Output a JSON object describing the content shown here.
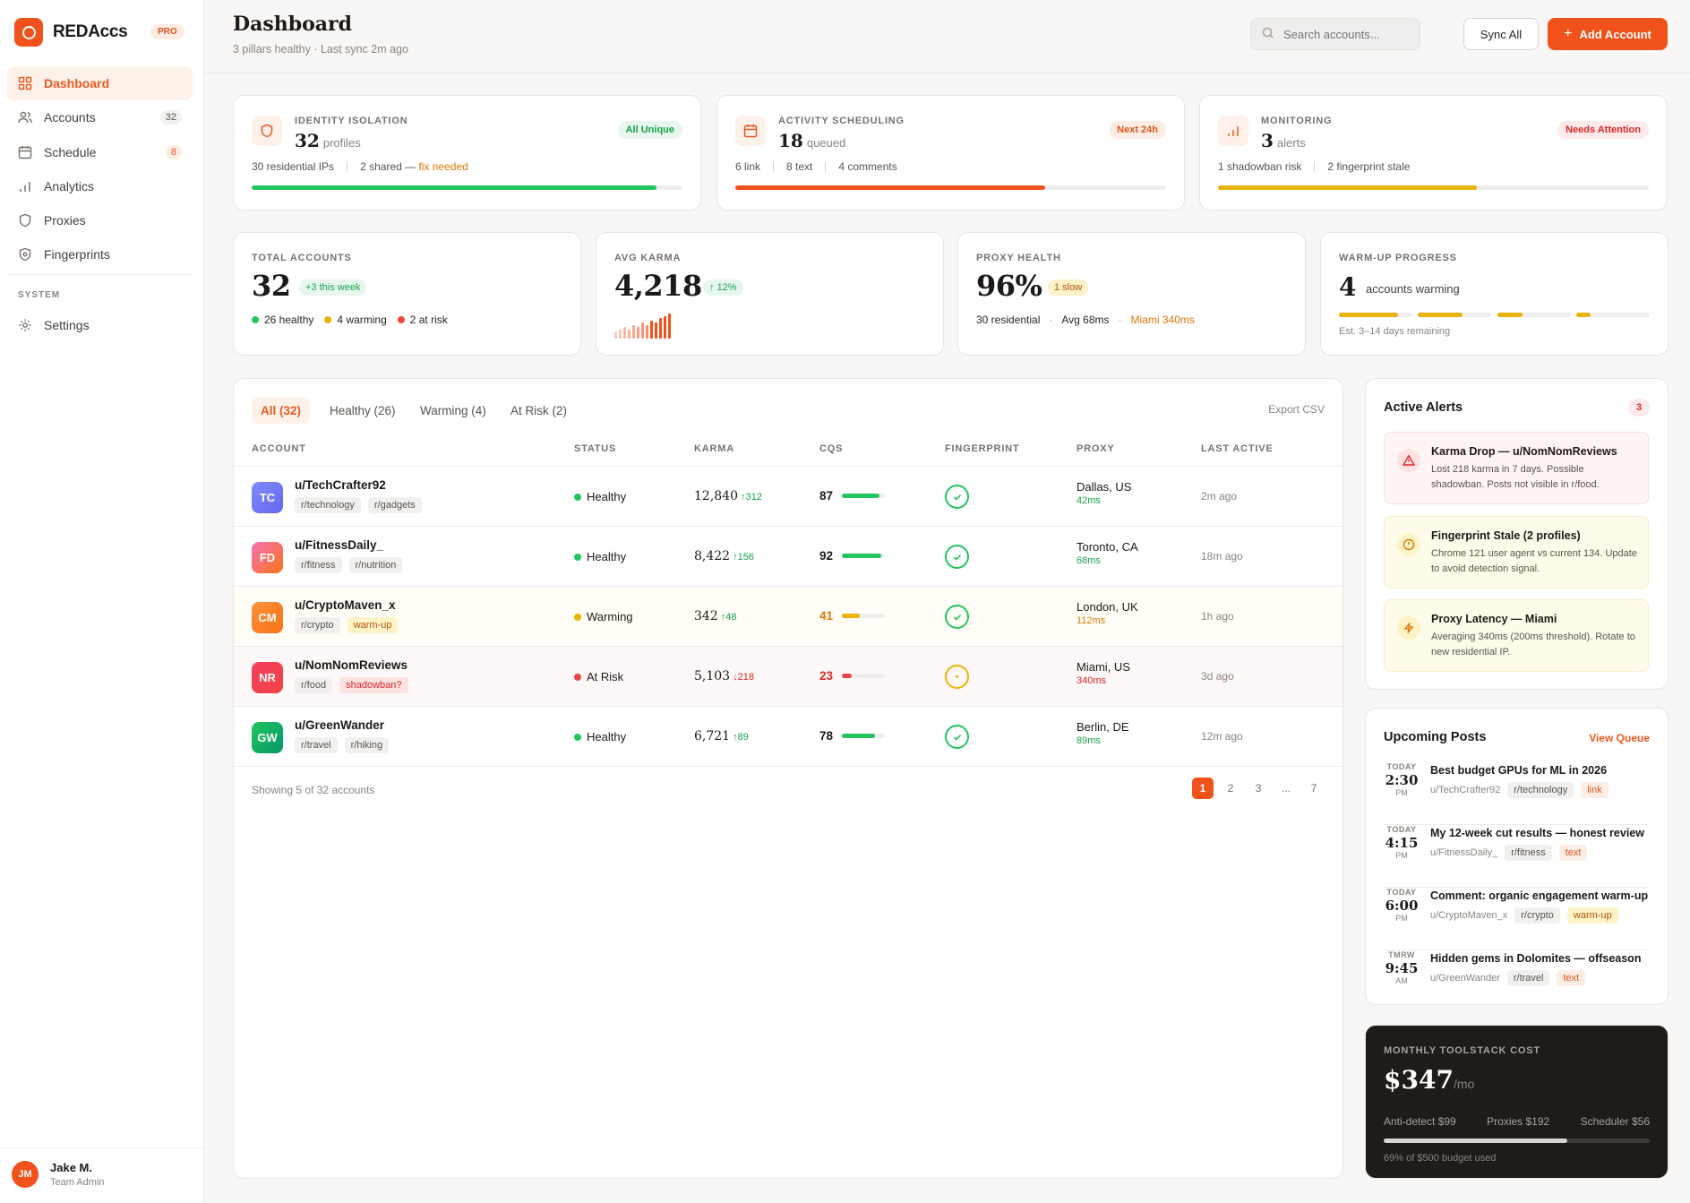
{
  "brand": {
    "name": "REDAccs",
    "badge": "PRO"
  },
  "sidebar": {
    "items": [
      {
        "label": "Dashboard",
        "icon": "grid-icon"
      },
      {
        "label": "Accounts",
        "icon": "users-icon",
        "count": "32"
      },
      {
        "label": "Schedule",
        "icon": "calendar-icon",
        "count": "8"
      },
      {
        "label": "Analytics",
        "icon": "bar-chart-icon"
      },
      {
        "label": "Proxies",
        "icon": "shield-icon"
      },
      {
        "label": "Fingerprints",
        "icon": "fingerprint-icon"
      }
    ],
    "system_label": "SYSTEM",
    "settings_label": "Settings",
    "user": {
      "initials": "JM",
      "name": "Jake M.",
      "role": "Team Admin"
    }
  },
  "header": {
    "title": "Dashboard",
    "subtitle": "3 pillars healthy · Last sync 2m ago",
    "search_placeholder": "Search accounts...",
    "sync_label": "Sync All",
    "add_label": "Add Account"
  },
  "pillars": [
    {
      "label": "IDENTITY ISOLATION",
      "value": "32",
      "unit": "profiles",
      "badge": "All Unique",
      "detail_a": "30 residential IPs",
      "detail_b": "2 shared —",
      "detail_c": "fix needed",
      "progress": 0.94
    },
    {
      "label": "ACTIVITY SCHEDULING",
      "value": "18",
      "unit": "queued",
      "badge": "Next 24h",
      "detail_a": "6 link",
      "detail_b": "8 text",
      "detail_c": "4 comments",
      "progress": 0.72
    },
    {
      "label": "MONITORING",
      "value": "3",
      "unit": "alerts",
      "badge": "Needs Attention",
      "detail_a": "1 shadowban risk",
      "detail_b": "2 fingerprint stale",
      "progress": 0.6
    }
  ],
  "stats": {
    "total": {
      "label": "TOTAL ACCOUNTS",
      "value": "32",
      "badge": "+3 this week",
      "healthy": "26 healthy",
      "warming": "4 warming",
      "risk": "2 at risk"
    },
    "karma": {
      "label": "AVG KARMA",
      "value": "4,218",
      "badge": "12%",
      "sparkline": [
        3,
        4,
        5,
        4,
        6,
        5,
        7,
        6,
        8,
        7,
        9,
        10,
        11
      ]
    },
    "proxy": {
      "label": "PROXY HEALTH",
      "value": "96%",
      "badge": "1 slow",
      "d1": "30 residential",
      "d2": "Avg 68ms",
      "d3": "Miami 340ms"
    },
    "warmup": {
      "label": "WARM-UP PROGRESS",
      "value": "4",
      "unit": "accounts warming",
      "progress": [
        0.8,
        0.6,
        0.35,
        0.2
      ],
      "eta": "Est. 3–14 days remaining"
    }
  },
  "table": {
    "tabs": [
      "All (32)",
      "Healthy (26)",
      "Warming (4)",
      "At Risk (2)"
    ],
    "export": "Export CSV",
    "columns": [
      "ACCOUNT",
      "STATUS",
      "KARMA",
      "CQS",
      "FINGERPRINT",
      "PROXY",
      "LAST ACTIVE"
    ],
    "rows": [
      {
        "initials": "TC",
        "name": "u/TechCrafter92",
        "tags": [
          "r/technology",
          "r/gadgets"
        ],
        "status": "Healthy",
        "karma": "12,840",
        "delta": "↑312",
        "cqs": "87",
        "proxy": "Dallas, US",
        "latency": "42ms",
        "last": "2m ago"
      },
      {
        "initials": "FD",
        "name": "u/FitnessDaily_",
        "tags": [
          "r/fitness",
          "r/nutrition"
        ],
        "status": "Healthy",
        "karma": "8,422",
        "delta": "↑156",
        "cqs": "92",
        "proxy": "Toronto, CA",
        "latency": "68ms",
        "last": "18m ago"
      },
      {
        "initials": "CM",
        "name": "u/CryptoMaven_x",
        "tags": [
          "r/crypto",
          "warm-up"
        ],
        "status": "Warming",
        "karma": "342",
        "delta": "↑48",
        "cqs": "41",
        "proxy": "London, UK",
        "latency": "112ms",
        "last": "1h ago"
      },
      {
        "initials": "NR",
        "name": "u/NomNomReviews",
        "tags": [
          "r/food",
          "shadowban?"
        ],
        "status": "At Risk",
        "karma": "5,103",
        "delta": "↓218",
        "cqs": "23",
        "proxy": "Miami, US",
        "latency": "340ms",
        "last": "3d ago"
      },
      {
        "initials": "GW",
        "name": "u/GreenWander",
        "tags": [
          "r/travel",
          "r/hiking"
        ],
        "status": "Healthy",
        "karma": "6,721",
        "delta": "↑89",
        "cqs": "78",
        "proxy": "Berlin, DE",
        "latency": "89ms",
        "last": "12m ago"
      }
    ],
    "showing": "Showing 5 of 32 accounts",
    "pages": [
      "1",
      "2",
      "3",
      "...",
      "7"
    ]
  },
  "alerts": {
    "title": "Active Alerts",
    "count": "3",
    "items": [
      {
        "title": "Karma Drop — u/NomNomReviews",
        "body": "Lost 218 karma in 7 days. Possible shadowban. Posts not visible in r/food."
      },
      {
        "title": "Fingerprint Stale (2 profiles)",
        "body": "Chrome 121 user agent vs current 134. Update to avoid detection signal."
      },
      {
        "title": "Proxy Latency — Miami",
        "body": "Averaging 340ms (200ms threshold). Rotate to new residential IP."
      }
    ]
  },
  "posts": {
    "title": "Upcoming Posts",
    "view": "View Queue",
    "items": [
      {
        "day": "TODAY",
        "time": "2:30",
        "ampm": "PM",
        "title": "Best budget GPUs for ML in 2026",
        "user": "u/TechCrafter92",
        "sub": "r/technology",
        "type": "link"
      },
      {
        "day": "TODAY",
        "time": "4:15",
        "ampm": "PM",
        "title": "My 12-week cut results — honest review",
        "user": "u/FitnessDaily_",
        "sub": "r/fitness",
        "type": "text"
      },
      {
        "day": "TODAY",
        "time": "6:00",
        "ampm": "PM",
        "title": "Comment: organic engagement warm-up",
        "user": "u/CryptoMaven_x",
        "sub": "r/crypto",
        "type": "warm-up"
      },
      {
        "day": "TMRW",
        "time": "9:45",
        "ampm": "AM",
        "title": "Hidden gems in Dolomites — offseason",
        "user": "u/GreenWander",
        "sub": "r/travel",
        "type": "text"
      }
    ]
  },
  "cost": {
    "label": "MONTHLY TOOLSTACK COST",
    "value": "$347",
    "unit": "/mo",
    "items": [
      "Anti-detect $99",
      "Proxies $192",
      "Scheduler $56"
    ],
    "used_fraction": 0.69,
    "footnote": "69% of $500 budget used"
  },
  "colors": {
    "accent": "#f1511b",
    "green": "#22c55e",
    "amber": "#eab308",
    "red": "#ef4444"
  }
}
